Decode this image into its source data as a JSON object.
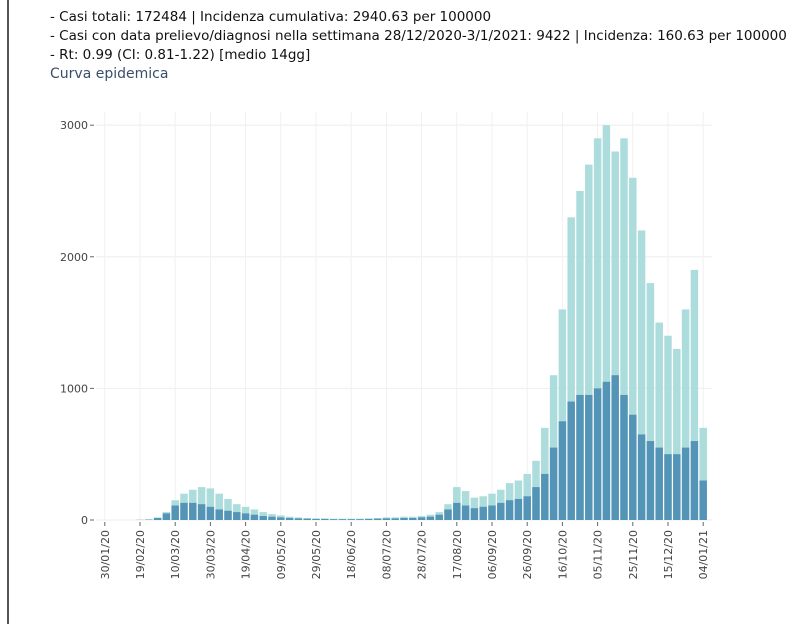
{
  "chart_data": {
    "type": "bar",
    "title": "- Casi totali: 172484 | Incidenza cumulativa: 2940.63 per 100000",
    "subtitle": "- Casi con data prelievo/diagnosi nella settimana 28/12/2020-3/1/2021: 9422 | Incidenza: 160.63 per 100000",
    "note": "- Rt: 0.99 (CI: 0.81-1.22) [medio 14gg]",
    "heading": "Curva epidemica",
    "x": [
      "30/01/20",
      "04/02/20",
      "09/02/20",
      "14/02/20",
      "19/02/20",
      "24/02/20",
      "29/02/20",
      "05/03/20",
      "10/03/20",
      "15/03/20",
      "20/03/20",
      "25/03/20",
      "30/03/20",
      "04/04/20",
      "09/04/20",
      "14/04/20",
      "19/04/20",
      "24/04/20",
      "29/04/20",
      "04/05/20",
      "09/05/20",
      "14/05/20",
      "19/05/20",
      "24/05/20",
      "29/05/20",
      "03/06/20",
      "08/06/20",
      "13/06/20",
      "18/06/20",
      "23/06/20",
      "28/06/20",
      "03/07/20",
      "08/07/20",
      "13/07/20",
      "18/07/20",
      "23/07/20",
      "28/07/20",
      "02/08/20",
      "07/08/20",
      "12/08/20",
      "17/08/20",
      "22/08/20",
      "27/08/20",
      "01/09/20",
      "06/09/20",
      "11/09/20",
      "16/09/20",
      "21/09/20",
      "26/09/20",
      "01/10/20",
      "06/10/20",
      "11/10/20",
      "16/10/20",
      "21/10/20",
      "26/10/20",
      "31/10/20",
      "05/11/20",
      "10/11/20",
      "15/11/20",
      "20/11/20",
      "25/11/20",
      "30/11/20",
      "05/12/20",
      "10/12/20",
      "15/12/20",
      "20/12/20",
      "25/12/20",
      "30/12/20",
      "04/01/21"
    ],
    "series": [
      {
        "color": "#a3d8d8",
        "values": [
          0,
          0,
          0,
          0,
          2,
          5,
          20,
          60,
          150,
          200,
          230,
          250,
          240,
          200,
          160,
          120,
          100,
          80,
          60,
          45,
          35,
          25,
          20,
          15,
          12,
          12,
          10,
          10,
          10,
          10,
          12,
          15,
          20,
          20,
          25,
          25,
          30,
          40,
          60,
          120,
          250,
          220,
          170,
          180,
          200,
          230,
          280,
          300,
          350,
          450,
          700,
          1100,
          1600,
          2300,
          2500,
          2700,
          2900,
          3000,
          2800,
          2900,
          2600,
          2200,
          1800,
          1500,
          1400,
          1300,
          1600,
          1900,
          700
        ]
      },
      {
        "color": "#4a8db3",
        "values": [
          0,
          0,
          0,
          0,
          1,
          3,
          15,
          50,
          110,
          130,
          130,
          120,
          100,
          80,
          70,
          60,
          50,
          40,
          30,
          25,
          20,
          15,
          12,
          10,
          8,
          8,
          6,
          6,
          6,
          6,
          8,
          10,
          12,
          12,
          15,
          15,
          20,
          25,
          40,
          80,
          130,
          110,
          90,
          100,
          110,
          130,
          150,
          160,
          180,
          250,
          350,
          550,
          750,
          900,
          950,
          950,
          1000,
          1050,
          1100,
          950,
          800,
          650,
          600,
          550,
          500,
          500,
          550,
          600,
          300
        ]
      }
    ],
    "xlim": [
      "25/01/20",
      "09/01/21"
    ],
    "xticks": [
      "30/01/20",
      "19/02/20",
      "10/03/20",
      "30/03/20",
      "19/04/20",
      "09/05/20",
      "29/05/20",
      "18/06/20",
      "08/07/20",
      "28/07/20",
      "17/08/20",
      "06/09/20",
      "26/09/20",
      "16/10/20",
      "05/11/20",
      "25/11/20",
      "15/12/20",
      "04/01/21"
    ],
    "ylim": [
      0,
      3100
    ],
    "yticks": [
      0,
      1000,
      2000,
      3000
    ],
    "grid": true
  }
}
